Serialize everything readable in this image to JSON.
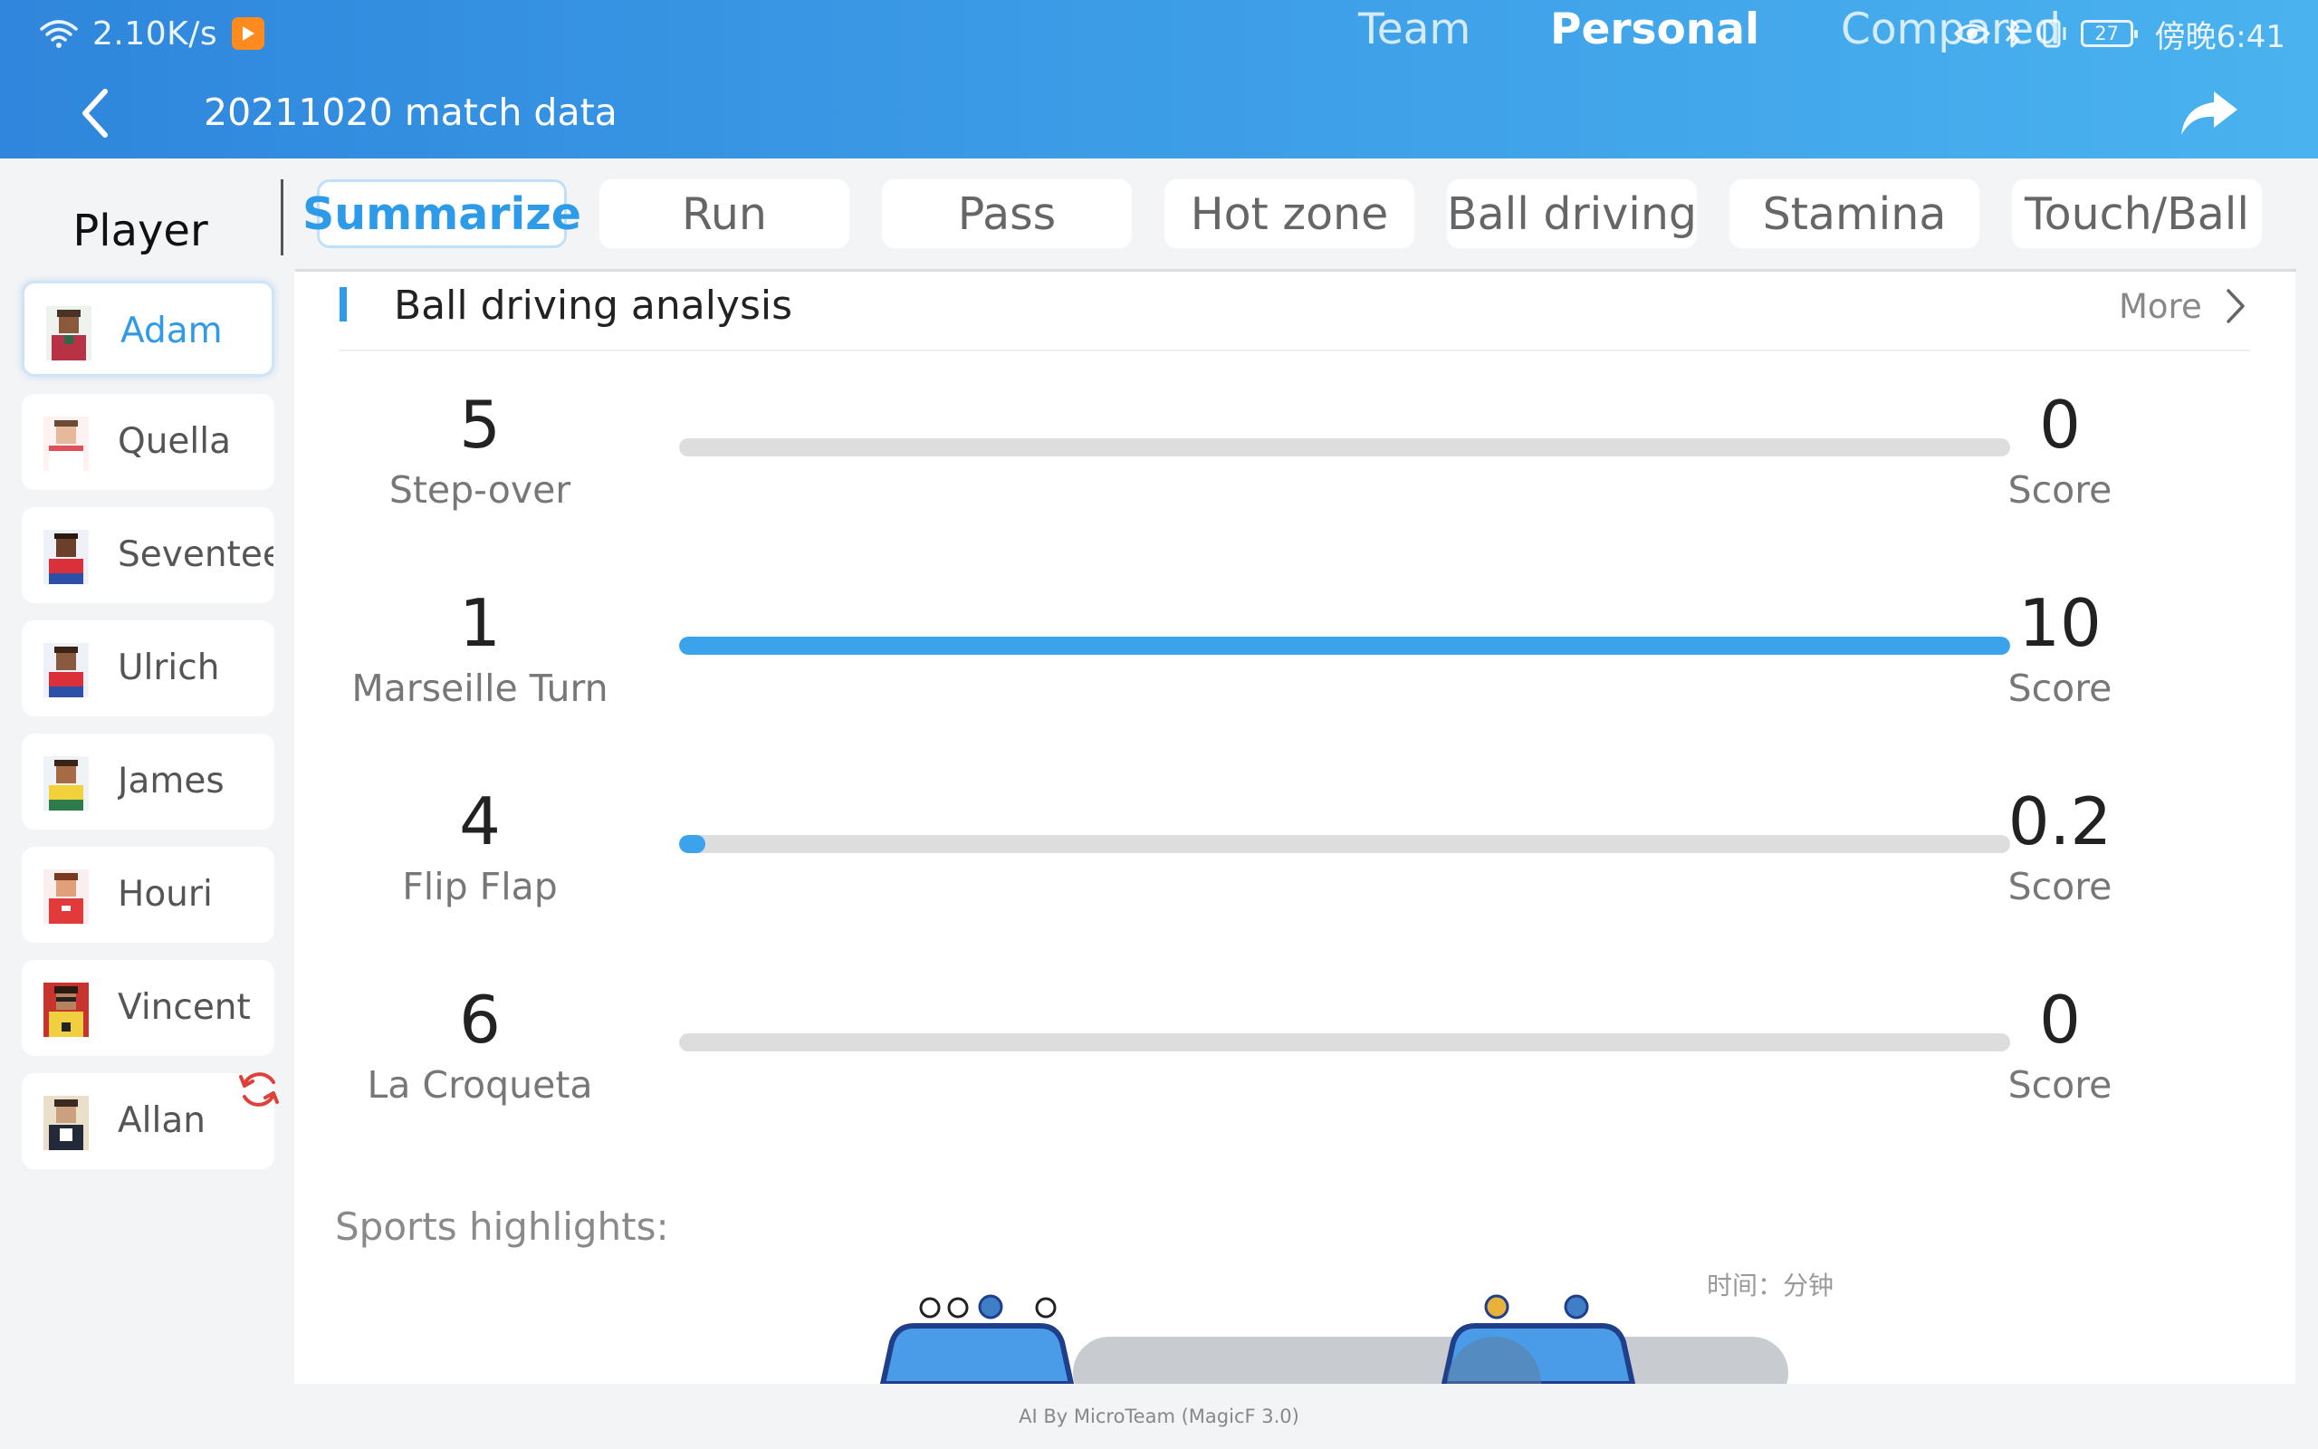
{
  "status_bar": {
    "net_speed": "2.10K/s",
    "battery_level": "27",
    "clock": "傍晚6:41"
  },
  "header": {
    "title": "20211020 match data",
    "tabs": [
      {
        "label": "Team",
        "active": false
      },
      {
        "label": "Personal",
        "active": true
      },
      {
        "label": "Compared",
        "active": false
      }
    ]
  },
  "sidebar": {
    "title": "Player",
    "players": [
      {
        "name": "Adam",
        "active": true
      },
      {
        "name": "Quella",
        "active": false
      },
      {
        "name": "Seventee",
        "active": false
      },
      {
        "name": "Ulrich",
        "active": false
      },
      {
        "name": "James",
        "active": false
      },
      {
        "name": "Houri",
        "active": false
      },
      {
        "name": "Vincent",
        "active": false
      },
      {
        "name": "Allan",
        "active": false
      }
    ]
  },
  "category_tabs": [
    {
      "label": "Summarize",
      "active": true
    },
    {
      "label": "Run",
      "active": false
    },
    {
      "label": "Pass",
      "active": false
    },
    {
      "label": "Hot zone",
      "active": false
    },
    {
      "label": "Ball driving",
      "active": false
    },
    {
      "label": "Stamina",
      "active": false
    },
    {
      "label": "Touch/Ball",
      "active": false
    }
  ],
  "section": {
    "title": "Ball driving analysis",
    "more_label": "More"
  },
  "metrics": [
    {
      "count": "5",
      "name": "Step-over",
      "score": "0",
      "score_label": "Score",
      "score_fraction": 0
    },
    {
      "count": "1",
      "name": "Marseille Turn",
      "score": "10",
      "score_label": "Score",
      "score_fraction": 1.0
    },
    {
      "count": "4",
      "name": "Flip Flap",
      "score": "0.2",
      "score_label": "Score",
      "score_fraction": 0.02
    },
    {
      "count": "6",
      "name": "La Croqueta",
      "score": "0",
      "score_label": "Score",
      "score_fraction": 0
    }
  ],
  "highlights": {
    "label": "Sports highlights:",
    "time_label": "时间：分钟"
  },
  "footer": {
    "text": "AI By MicroTeam (MagicF 3.0)"
  },
  "colors": {
    "accent": "#2f9be8",
    "header_gradient_start": "#2f86dc",
    "header_gradient_end": "#4ab2ef",
    "track": "#dddddd",
    "fill": "#3aa3ec"
  },
  "icons": [
    "wifi-icon",
    "app-badge-icon",
    "eye-icon",
    "bluetooth-icon",
    "vibrate-icon",
    "battery-icon",
    "back-arrow-icon",
    "share-icon",
    "chevron-right-icon",
    "refresh-icon",
    "player-avatar-icon",
    "ball-icon",
    "shield-icon"
  ]
}
